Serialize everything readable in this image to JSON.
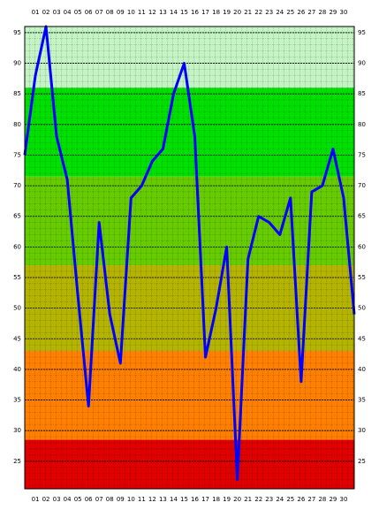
{
  "chart_data": {
    "type": "line",
    "categories": [
      null,
      "01",
      "02",
      "03",
      "04",
      "05",
      "06",
      "07",
      "08",
      "09",
      "10",
      "11",
      "12",
      "13",
      "14",
      "15",
      "16",
      "17",
      "18",
      "19",
      "20",
      "21",
      "22",
      "23",
      "24",
      "25",
      "26",
      "27",
      "28",
      "29",
      "30",
      null
    ],
    "series": [
      {
        "color": "#0000ff",
        "values": [
          75,
          88,
          96,
          78,
          71,
          52,
          34,
          64,
          49,
          41,
          68,
          70,
          74,
          76,
          85,
          90,
          78,
          42,
          50,
          60,
          22,
          58,
          65,
          64,
          62,
          68,
          38,
          69,
          70,
          76,
          68,
          49
        ]
      }
    ],
    "ylim": [
      20.5,
      96
    ],
    "yticks": [
      25,
      30,
      35,
      40,
      45,
      50,
      55,
      60,
      65,
      70,
      75,
      80,
      85,
      90,
      95
    ],
    "bands": [
      {
        "from": 86,
        "to": 96,
        "color": "#c4f4c4"
      },
      {
        "from": 71.5,
        "to": 86,
        "color": "#00e000"
      },
      {
        "from": 57,
        "to": 71.5,
        "color": "#66cc00"
      },
      {
        "from": 43,
        "to": 57,
        "color": "#b4b400"
      },
      {
        "from": 28.5,
        "to": 43,
        "color": "#ff8000"
      },
      {
        "from": 20.5,
        "to": 28.5,
        "color": "#e00000"
      }
    ],
    "grid": true
  }
}
